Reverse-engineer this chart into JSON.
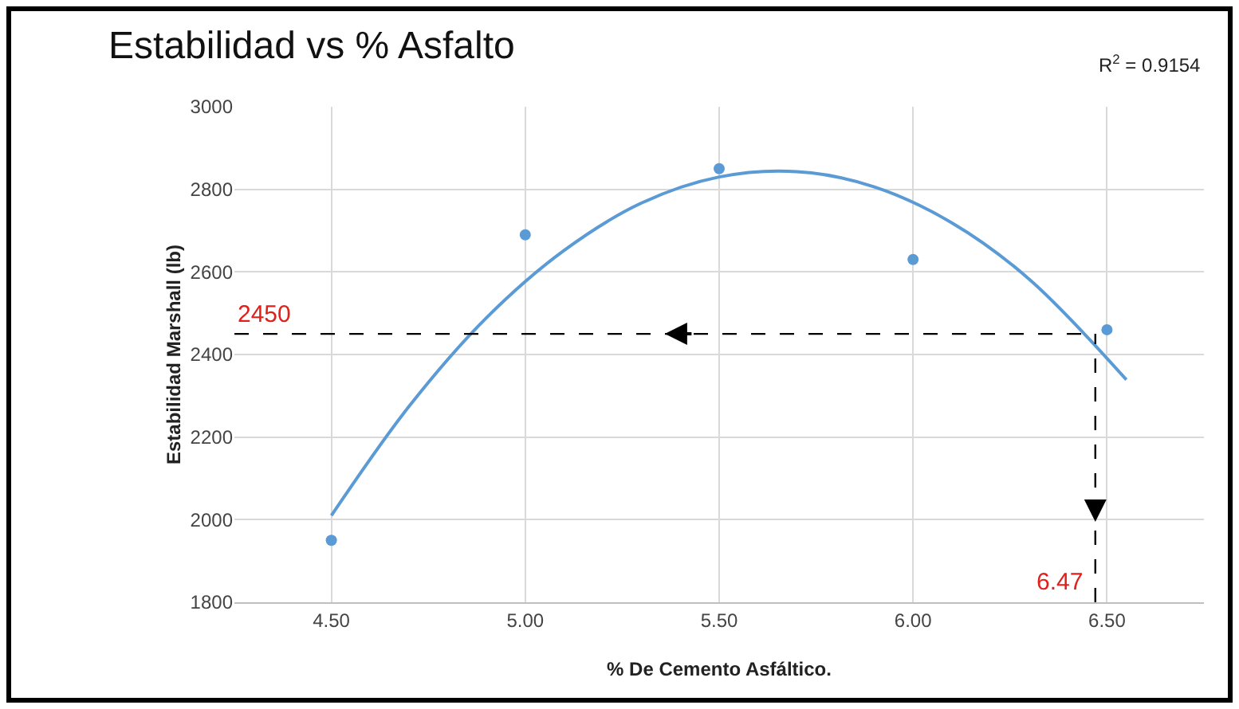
{
  "chart_data": {
    "type": "scatter",
    "title": "Estabilidad vs % Asfalto",
    "xlabel": "% De Cemento Asfáltico.",
    "ylabel": "Estabilidad Marshall (lb)",
    "xlim": [
      4.25,
      6.75
    ],
    "xticks": [
      {
        "value": 4.5,
        "label": "4.50"
      },
      {
        "value": 5,
        "label": "5.00"
      },
      {
        "value": 5.5,
        "label": "5.50"
      },
      {
        "value": 6,
        "label": "6.00"
      },
      {
        "value": 6.5,
        "label": "6.50"
      }
    ],
    "ylim": [
      1800,
      3000
    ],
    "yticks": [
      1800,
      2000,
      2200,
      2400,
      2600,
      2800,
      3000
    ],
    "grid": true,
    "series": [
      {
        "type": "scatter",
        "marker": "circle",
        "color": "#5b9bd5",
        "x": [
          4.5,
          5.0,
          5.5,
          6.0,
          6.5
        ],
        "values": [
          1950,
          2690,
          2850,
          2630,
          2460
        ]
      },
      {
        "type": "line",
        "marker": "none",
        "line_style": "solid",
        "color": "#5b9bd5",
        "x": [
          4.5,
          4.7,
          4.9,
          5.1,
          5.3,
          5.5,
          5.7,
          5.9,
          6.1,
          6.3,
          6.55
        ],
        "values": [
          2010,
          2274,
          2489,
          2652,
          2767,
          2830,
          2843,
          2806,
          2719,
          2582,
          2339
        ]
      }
    ],
    "ref_lines": [
      {
        "axis": "y",
        "value": 2450,
        "label": "2450",
        "color": "#000000",
        "line_style": "dashed"
      },
      {
        "axis": "x",
        "value": 6.47,
        "label": "6.47",
        "color": "#000000",
        "line_style": "dashed"
      }
    ],
    "annotations": [
      "R$^{2}$ = 0.9154"
    ]
  }
}
